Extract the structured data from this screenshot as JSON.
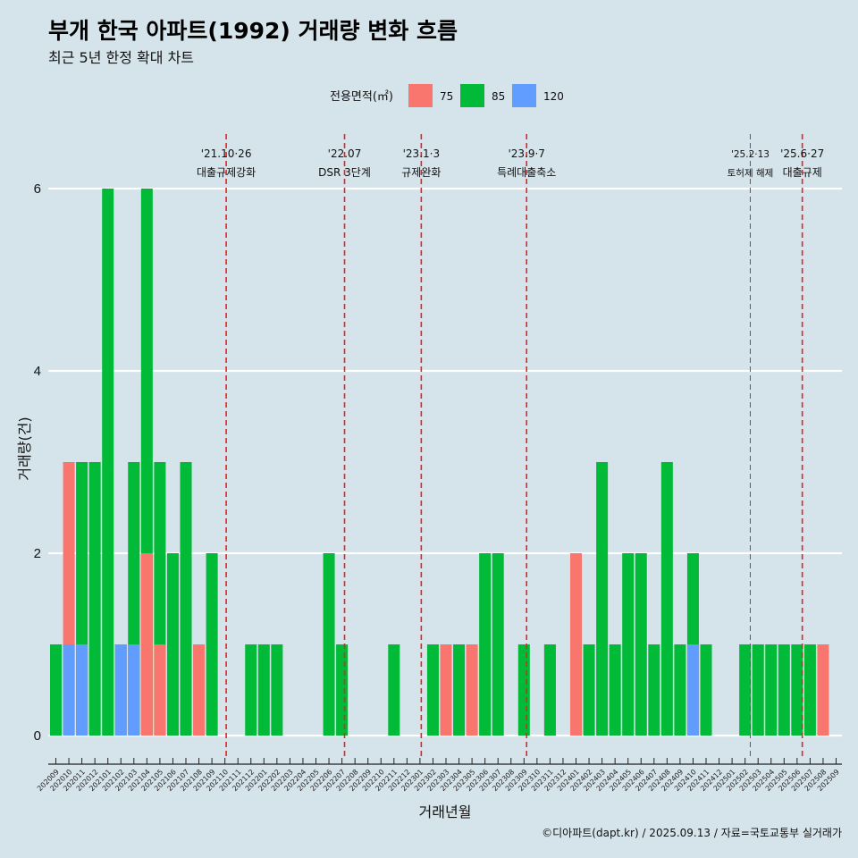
{
  "title": "부개 한국 아파트(1992) 거래량 변화 흐름",
  "subtitle": "최근 5년 한정 확대 차트",
  "caption": "©디아파트(dapt.kr) / 2025.09.13 / 자료=국토교통부 실거래가",
  "colors": {
    "background": "#d5e3ea",
    "event_line": "#e8231c",
    "75": "#f8766d",
    "85": "#00ba38",
    "120": "#619cff"
  },
  "chart_data": {
    "type": "bar",
    "title": "부개 한국 아파트(1992) 거래량 변화 흐름",
    "subtitle": "최근 5년 한정 확대 차트",
    "xlabel": "거래년월",
    "ylabel": "거래량(건)",
    "ylim": [
      -0.25,
      6.5
    ],
    "yticks": [
      0,
      2,
      4,
      6
    ],
    "grid": true,
    "legend": {
      "title": "전용면적(㎡)",
      "position": "top",
      "entries": [
        {
          "key": "75",
          "label": "75"
        },
        {
          "key": "85",
          "label": "85"
        },
        {
          "key": "120",
          "label": "120"
        }
      ]
    },
    "x_tick_labels": [
      "202009",
      "202010",
      "202011",
      "202012",
      "202101",
      "202102",
      "202103",
      "202104",
      "202105",
      "202106",
      "202107",
      "202108",
      "202109",
      "202110",
      "202111",
      "202112",
      "202201",
      "202202",
      "202203",
      "202204",
      "202205",
      "202206",
      "202207",
      "202208",
      "202209",
      "202210",
      "202211",
      "202212",
      "202301",
      "202302",
      "202303",
      "202304",
      "202305",
      "202306",
      "202307",
      "202308",
      "202309",
      "202310",
      "202311",
      "202312",
      "202401",
      "202402",
      "202403",
      "202404",
      "202405",
      "202406",
      "202407",
      "202408",
      "202409",
      "202410",
      "202411",
      "202412",
      "202501",
      "202502",
      "202503",
      "202504",
      "202505",
      "202506",
      "202507",
      "202508",
      "202509"
    ],
    "bars": [
      {
        "month": "202009",
        "area": "85",
        "value": 1
      },
      {
        "month": "202010",
        "area": "75",
        "value": 3
      },
      {
        "month": "202010",
        "area": "85",
        "value": 1
      },
      {
        "month": "202010",
        "area": "120",
        "value": 1
      },
      {
        "month": "202011",
        "area": "85",
        "value": 3
      },
      {
        "month": "202011",
        "area": "120",
        "value": 1
      },
      {
        "month": "202012",
        "area": "85",
        "value": 3
      },
      {
        "month": "202101",
        "area": "85",
        "value": 6
      },
      {
        "month": "202102",
        "area": "85",
        "value": 1
      },
      {
        "month": "202102",
        "area": "120",
        "value": 1
      },
      {
        "month": "202103",
        "area": "75",
        "value": 3
      },
      {
        "month": "202103",
        "area": "85",
        "value": 3
      },
      {
        "month": "202103",
        "area": "120",
        "value": 1
      },
      {
        "month": "202104",
        "area": "75",
        "value": 2
      },
      {
        "month": "202104",
        "area": "85",
        "value": 6
      },
      {
        "month": "202105",
        "area": "75",
        "value": 1
      },
      {
        "month": "202105",
        "area": "85",
        "value": 3
      },
      {
        "month": "202106",
        "area": "85",
        "value": 2
      },
      {
        "month": "202107",
        "area": "85",
        "value": 3
      },
      {
        "month": "202108",
        "area": "75",
        "value": 1
      },
      {
        "month": "202109",
        "area": "85",
        "value": 2
      },
      {
        "month": "202112",
        "area": "85",
        "value": 1
      },
      {
        "month": "202201",
        "area": "85",
        "value": 1
      },
      {
        "month": "202202",
        "area": "85",
        "value": 1
      },
      {
        "month": "202206",
        "area": "85",
        "value": 2
      },
      {
        "month": "202207",
        "area": "85",
        "value": 1
      },
      {
        "month": "202211",
        "area": "85",
        "value": 1
      },
      {
        "month": "202302",
        "area": "85",
        "value": 1
      },
      {
        "month": "202303",
        "area": "75",
        "value": 1
      },
      {
        "month": "202304",
        "area": "85",
        "value": 1
      },
      {
        "month": "202305",
        "area": "75",
        "value": 1
      },
      {
        "month": "202306",
        "area": "85",
        "value": 2
      },
      {
        "month": "202307",
        "area": "85",
        "value": 2
      },
      {
        "month": "202309",
        "area": "85",
        "value": 1
      },
      {
        "month": "202311",
        "area": "75",
        "value": 1
      },
      {
        "month": "202311",
        "area": "85",
        "value": 1
      },
      {
        "month": "202401",
        "area": "75",
        "value": 2
      },
      {
        "month": "202402",
        "area": "85",
        "value": 1
      },
      {
        "month": "202403",
        "area": "85",
        "value": 3
      },
      {
        "month": "202404",
        "area": "85",
        "value": 1
      },
      {
        "month": "202405",
        "area": "85",
        "value": 2
      },
      {
        "month": "202406",
        "area": "85",
        "value": 2
      },
      {
        "month": "202407",
        "area": "85",
        "value": 1
      },
      {
        "month": "202408",
        "area": "85",
        "value": 3
      },
      {
        "month": "202409",
        "area": "85",
        "value": 1
      },
      {
        "month": "202410",
        "area": "85",
        "value": 2
      },
      {
        "month": "202410",
        "area": "120",
        "value": 1
      },
      {
        "month": "202411",
        "area": "85",
        "value": 1
      },
      {
        "month": "202502",
        "area": "85",
        "value": 1
      },
      {
        "month": "202503",
        "area": "75",
        "value": 1
      },
      {
        "month": "202503",
        "area": "85",
        "value": 1
      },
      {
        "month": "202504",
        "area": "85",
        "value": 1
      },
      {
        "month": "202505",
        "area": "85",
        "value": 1
      },
      {
        "month": "202506",
        "area": "85",
        "value": 1
      },
      {
        "month": "202507",
        "area": "85",
        "value": 1
      },
      {
        "month": "202508",
        "area": "75",
        "value": 1
      }
    ],
    "events": [
      {
        "month_index": 13.1,
        "date": "'21.10·26",
        "desc": "대출규제강화",
        "small": false
      },
      {
        "month_index": 22.2,
        "date": "'22.07",
        "desc": "DSR 3단계",
        "small": false
      },
      {
        "month_index": 28.1,
        "date": "'23.1·3",
        "desc": "규제완화",
        "small": false
      },
      {
        "month_index": 36.2,
        "date": "'23.9·7",
        "desc": "특례대출축소",
        "small": false
      },
      {
        "month_index": 53.4,
        "date": "'25.2·13",
        "desc": "토허제 해제",
        "small": true
      },
      {
        "month_index": 57.4,
        "date": "'25.6·27",
        "desc": "대출규제",
        "small": false
      }
    ]
  }
}
